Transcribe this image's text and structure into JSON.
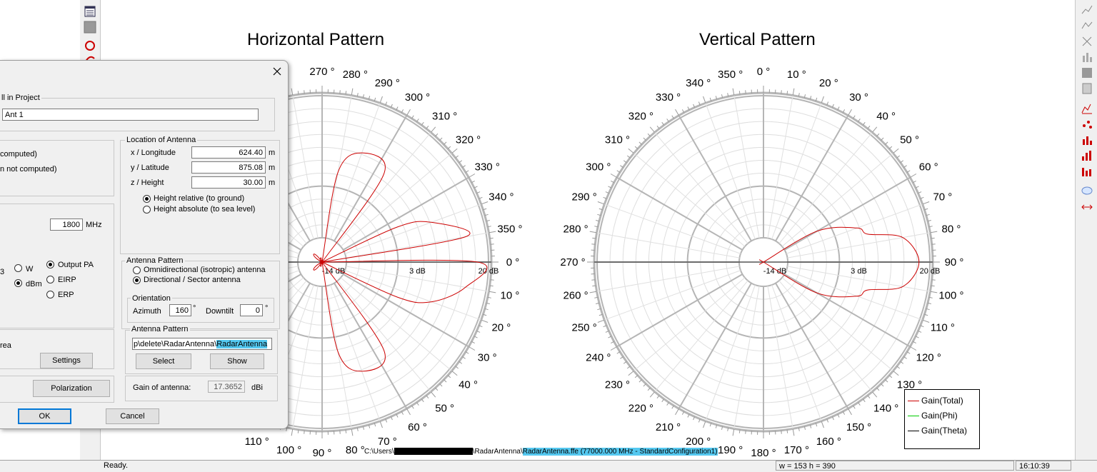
{
  "status": {
    "ready": "Ready.",
    "size": "w = 153 h = 390",
    "time": "16:10:39"
  },
  "charts": {
    "horizontal_title": "Horizontal Pattern",
    "vertical_title": "Vertical Pattern",
    "path_prefix": "C:\\Users\\",
    "path_middle": "\\RadarAntenna\\",
    "path_highlight": "RadarAntenna.ffe (77000.000 MHz - StandardConfiguration1)"
  },
  "legend": {
    "items": [
      {
        "label": "Gain(Total)",
        "color": "#cc0000"
      },
      {
        "label": "Gain(Phi)",
        "color": "#00cc00"
      },
      {
        "label": "Gain(Theta)",
        "color": "#000000"
      }
    ]
  },
  "colors": {
    "accent": "#0078d7",
    "selection": "#54c8f0",
    "trace": "#cc0000"
  },
  "chart_data": [
    {
      "type": "polar",
      "title": "Horizontal Pattern",
      "angle_labels": [
        "0 °",
        "10 °",
        "20 °",
        "30 °",
        "40 °",
        "50 °",
        "60 °",
        "70 °",
        "80 °",
        "90 °",
        "100 °",
        "110 °",
        "270 °",
        "280 °",
        "290 °",
        "300 °",
        "310 °",
        "320 °",
        "330 °",
        "340 °",
        "350 °"
      ],
      "radial_labels": [
        "-14 dB",
        "3 dB",
        "20 dB"
      ],
      "radial_range": [
        -14,
        20
      ],
      "series": [
        {
          "name": "Gain(Total)",
          "color": "#cc0000",
          "points": [
            {
              "angle": 0,
              "value": 17.4
            },
            {
              "angle": 10,
              "value": 15
            },
            {
              "angle": 20,
              "value": 8
            },
            {
              "angle": 25,
              "value": 0
            },
            {
              "angle": 30,
              "value": -14
            },
            {
              "angle": 45,
              "value": -14
            },
            {
              "angle": 55,
              "value": 6
            },
            {
              "angle": 70,
              "value": 8
            },
            {
              "angle": 80,
              "value": 2
            },
            {
              "angle": 90,
              "value": -14
            },
            {
              "angle": 270,
              "value": -14
            },
            {
              "angle": 280,
              "value": 2
            },
            {
              "angle": 290,
              "value": 8
            },
            {
              "angle": 305,
              "value": 6
            },
            {
              "angle": 315,
              "value": -14
            },
            {
              "angle": 330,
              "value": -14
            },
            {
              "angle": 335,
              "value": 0
            },
            {
              "angle": 340,
              "value": 8
            },
            {
              "angle": 350,
              "value": 15
            }
          ]
        }
      ]
    },
    {
      "type": "polar",
      "title": "Vertical Pattern",
      "angle_labels": [
        "0 °",
        "10 °",
        "20 °",
        "30 °",
        "40 °",
        "50 °",
        "60 °",
        "70 °",
        "80 °",
        "90 °",
        "100 °",
        "110 °",
        "120 °",
        "130 °",
        "140 °",
        "150 °",
        "160 °",
        "170 °",
        "180 °",
        "190 °",
        "200 °",
        "210 °",
        "220 °",
        "230 °",
        "240 °",
        "250 °",
        "260 °",
        "270 °",
        "280 °",
        "290 °",
        "300 °",
        "310 °",
        "320 °",
        "330 °",
        "340 °",
        "350 °"
      ],
      "radial_labels": [
        "-14 dB",
        "3 dB",
        "20 dB"
      ],
      "radial_range": [
        -14,
        20
      ],
      "series": [
        {
          "name": "Gain(Total)",
          "color": "#cc0000",
          "points": [
            {
              "angle": 30,
              "value": -14
            },
            {
              "angle": 60,
              "value": -5
            },
            {
              "angle": 70,
              "value": 4
            },
            {
              "angle": 75,
              "value": 6
            },
            {
              "angle": 80,
              "value": 14
            },
            {
              "angle": 90,
              "value": 17.4
            },
            {
              "angle": 100,
              "value": 14
            },
            {
              "angle": 105,
              "value": 6
            },
            {
              "angle": 110,
              "value": 4
            },
            {
              "angle": 120,
              "value": -5
            },
            {
              "angle": 150,
              "value": -14
            }
          ]
        }
      ]
    }
  ],
  "dialog": {
    "cell_group": "ll in Project",
    "cell_value": "Ant 1",
    "computed1": " computed)",
    "computed2": "n not computed)",
    "location_group": "Location of Antenna",
    "x_label": "x / Longitude",
    "x_value": "624.40",
    "x_unit": "m",
    "y_label": "y / Latitude",
    "y_value": "875.08",
    "y_unit": "m",
    "z_label": "z / Height",
    "z_value": "30.00",
    "z_unit": "m",
    "height_relative": "Height relative (to ground)",
    "height_absolute": "Height absolute (to sea level)",
    "freq_value": "1800",
    "freq_unit": "MHz",
    "pw_partial": "3",
    "w_label": "W",
    "dbm_label": "dBm",
    "output_pa": "Output PA",
    "eirp": "EIRP",
    "erp": "ERP",
    "pattern_group": "Antenna Pattern",
    "omni": "Omnidirectional (isotropic) antenna",
    "directional": "Directional / Sector antenna",
    "orientation_group": "Orientation",
    "azimuth_label": "Azimuth",
    "azimuth_value": "160",
    "deg": "°",
    "downtilt_label": "Downtilt",
    "downtilt_value": "0",
    "pattern_file_group": "Antenna Pattern",
    "pattern_path": "p\\delete\\RadarAntenna\\",
    "pattern_path_sel": "RadarAntenna",
    "select_label": "Select",
    "show_label": "Show",
    "area_label": "rea",
    "settings_label": "Settings",
    "polarization_label": "Polarization",
    "gain_label": "Gain of antenna:",
    "gain_value": "17.3652",
    "gain_unit": "dBi",
    "ok_label": "OK",
    "cancel_label": "Cancel"
  }
}
